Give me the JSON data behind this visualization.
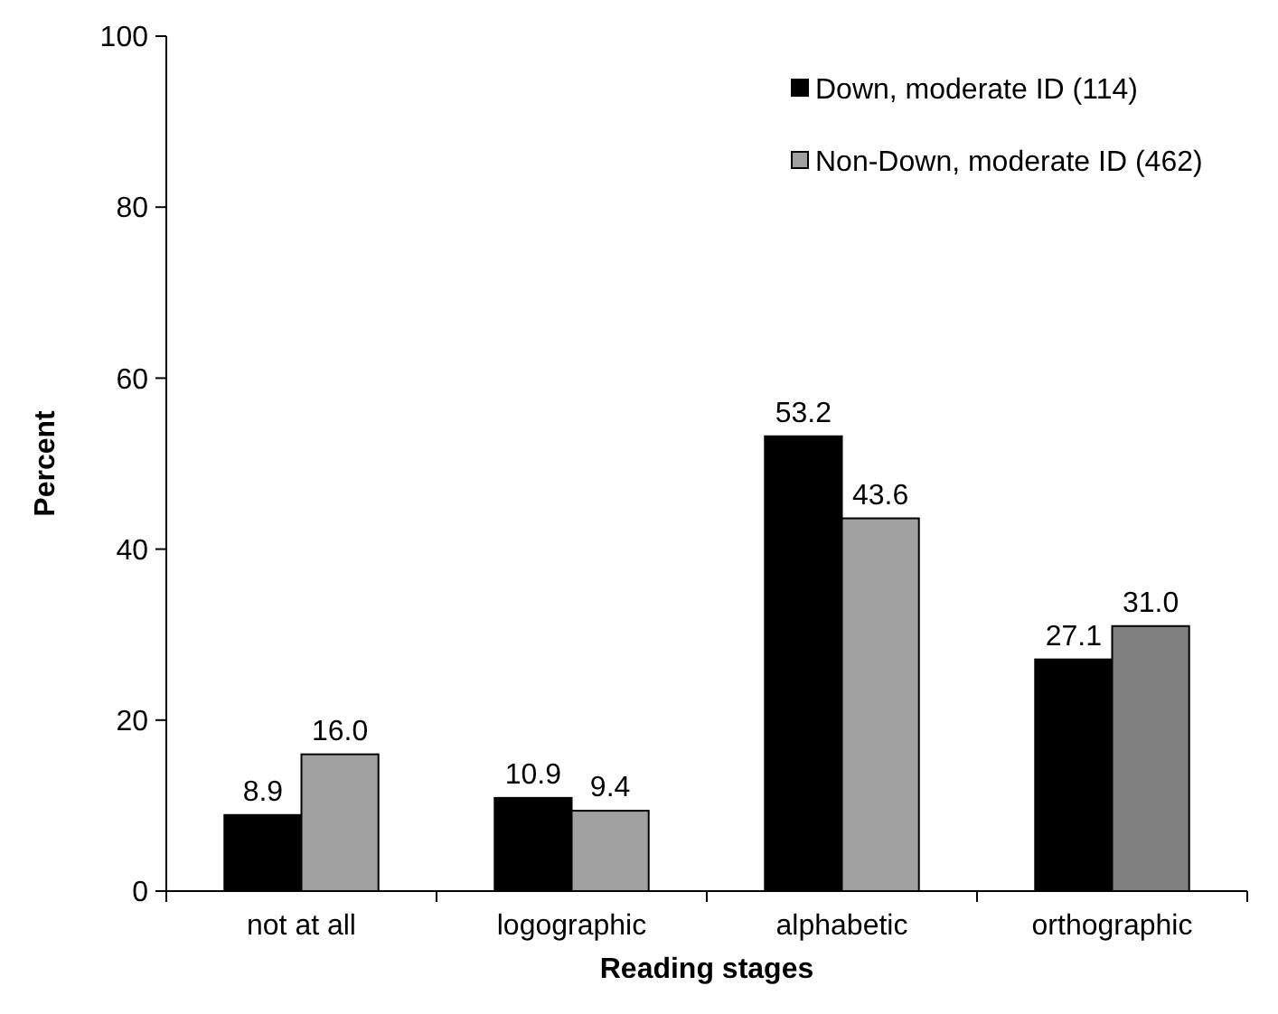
{
  "chart_data": {
    "type": "bar",
    "xlabel": "Reading stages",
    "ylabel": "Percent",
    "categories": [
      "not at all",
      "logographic",
      "alphabetic",
      "orthographic"
    ],
    "series": [
      {
        "name": "Down, moderate ID (114)",
        "color": "#000000",
        "values": [
          8.9,
          10.9,
          53.2,
          27.1
        ],
        "value_labels": [
          "8.9",
          "10.9",
          "53.2",
          "27.1"
        ]
      },
      {
        "name": "Non-Down, moderate ID (462)",
        "color": "#a0a0a0",
        "colors": [
          "#a0a0a0",
          "#a0a0a0",
          "#a0a0a0",
          "#808080"
        ],
        "values": [
          16.0,
          9.4,
          43.6,
          31.0
        ],
        "value_labels": [
          "16.0",
          "9.4",
          "43.6",
          "31.0"
        ]
      }
    ],
    "ylim": [
      0,
      100
    ],
    "yticks": [
      0,
      20,
      40,
      60,
      80,
      100
    ],
    "legend": "top right",
    "grid": false
  }
}
